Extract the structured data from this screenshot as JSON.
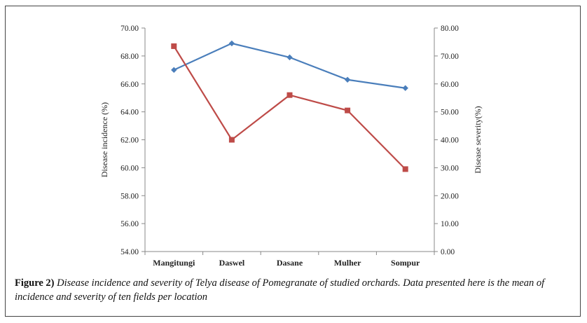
{
  "chart_data": {
    "type": "line",
    "categories": [
      "Mangitungi",
      "Daswel",
      "Dasane",
      "Mulher",
      "Sompur"
    ],
    "series": [
      {
        "name": "",
        "axis": "left",
        "color": "#4a7ebb",
        "marker": "diamond",
        "values": [
          67.0,
          68.9,
          67.9,
          66.3,
          65.7
        ]
      },
      {
        "name": "",
        "axis": "right",
        "color": "#be4b48",
        "marker": "square",
        "values": [
          73.5,
          40.0,
          56.0,
          50.5,
          29.5
        ]
      }
    ],
    "y_left": {
      "label": "Disease incidence (%)",
      "range": [
        54,
        70
      ],
      "ticks": [
        "54.00",
        "56.00",
        "58.00",
        "60.00",
        "62.00",
        "64.00",
        "66.00",
        "68.00",
        "70.00"
      ]
    },
    "y_right": {
      "label": "Disease severity(%)",
      "range": [
        0,
        80
      ],
      "ticks": [
        "0.00",
        "10.00",
        "20.00",
        "30.00",
        "40.00",
        "50.00",
        "60.00",
        "70.00",
        "80.00"
      ]
    },
    "grid": false,
    "legend": "none"
  },
  "caption": {
    "figure_label": "Figure 2)",
    "text": " Disease incidence and severity of Telya disease of Pomegranate of studied orchards. Data presented here is the mean of incidence and severity of ten fields per location"
  }
}
